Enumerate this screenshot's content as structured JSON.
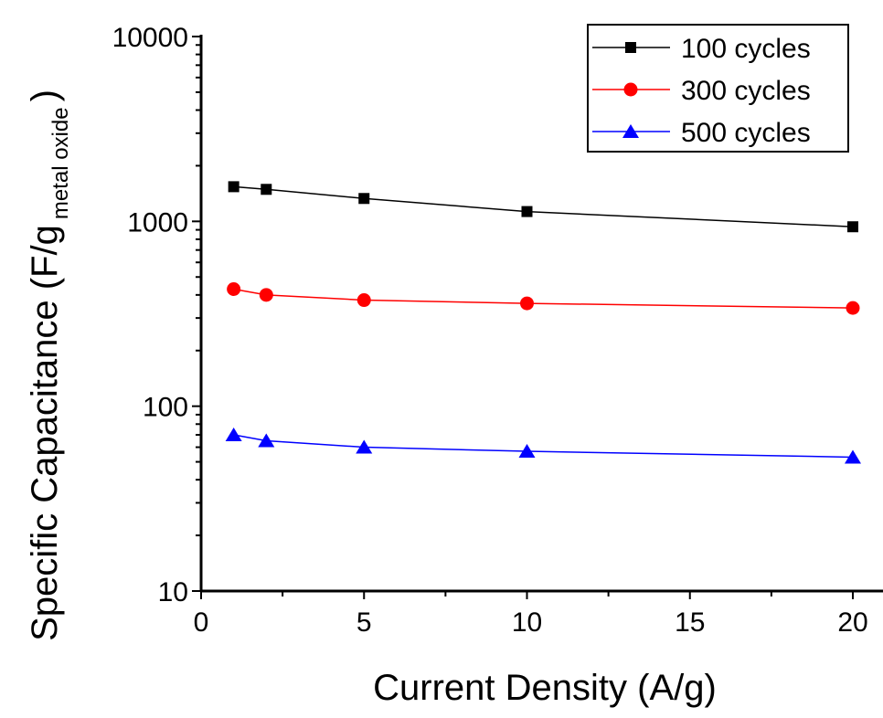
{
  "chart_data": {
    "type": "line",
    "title": "",
    "xlabel": "Current Density (A/g)",
    "ylabel": "Specific Capacitance (F/g",
    "ylabel_subscript": "metal oxide",
    "ylabel_close": ")",
    "xlim": [
      0,
      21
    ],
    "ylim": [
      10,
      10000
    ],
    "yscale": "log",
    "x_ticks": [
      0,
      5,
      10,
      15,
      20
    ],
    "x_tick_labels": [
      "0",
      "5",
      "10",
      "15",
      "20"
    ],
    "y_ticks": [
      10,
      100,
      1000,
      10000
    ],
    "y_tick_labels": [
      "10",
      "100",
      "1000",
      "10000"
    ],
    "grid": false,
    "legend_position": "top-right",
    "x": [
      1,
      2,
      5,
      10,
      20
    ],
    "series": [
      {
        "name": "100 cycles",
        "marker": "square",
        "color": "#000000",
        "values": [
          1540,
          1490,
          1330,
          1130,
          935
        ]
      },
      {
        "name": "300 cycles",
        "marker": "circle",
        "color": "#ff0000",
        "values": [
          430,
          400,
          375,
          360,
          340
        ]
      },
      {
        "name": "500 cycles",
        "marker": "triangle",
        "color": "#0000ff",
        "values": [
          70,
          65,
          60,
          57,
          53
        ]
      }
    ]
  }
}
